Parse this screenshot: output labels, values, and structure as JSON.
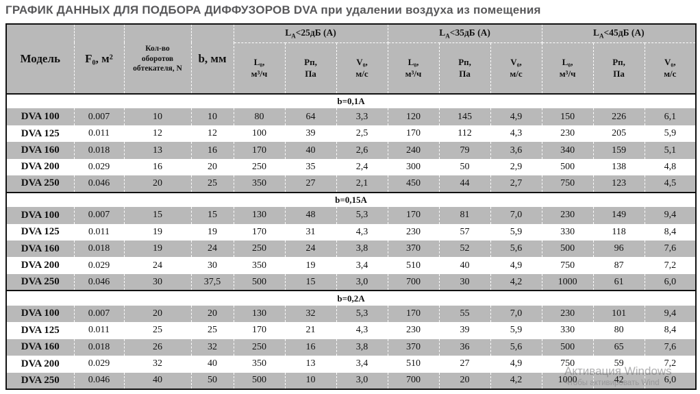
{
  "title": "ГРАФИК ДАННЫХ ДЛЯ ПОДБОРА ДИФФУЗОРОВ DVA при удалении воздуха из помещения",
  "table": {
    "columns": {
      "model": "Модель",
      "f0": "F₀, м²",
      "n": "Кол-во\nоборотов\nобтекателя, N",
      "b": "b, мм"
    },
    "groups": [
      {
        "main": "L",
        "sub": "A",
        "rest": "<25дБ (A)"
      },
      {
        "main": "L",
        "sub": "A",
        "rest": "<35дБ (A)"
      },
      {
        "main": "L",
        "sub": "A",
        "rest": "<45дБ (A)"
      }
    ],
    "subcols": [
      "L₀,\nм³/ч",
      "Рп,\nПа",
      "V₀,\nм/с"
    ],
    "sections": [
      {
        "label": "b=0,1A",
        "rows": [
          {
            "model": "DVA 100",
            "values": [
              "0.007",
              "10",
              "10",
              "80",
              "64",
              "3,3",
              "120",
              "145",
              "4,9",
              "150",
              "226",
              "6,1"
            ]
          },
          {
            "model": "DVA 125",
            "values": [
              "0.011",
              "12",
              "12",
              "100",
              "39",
              "2,5",
              "170",
              "112",
              "4,3",
              "230",
              "205",
              "5,9"
            ]
          },
          {
            "model": "DVA 160",
            "values": [
              "0.018",
              "13",
              "16",
              "170",
              "40",
              "2,6",
              "240",
              "79",
              "3,6",
              "340",
              "159",
              "5,1"
            ]
          },
          {
            "model": "DVA 200",
            "values": [
              "0.029",
              "16",
              "20",
              "250",
              "35",
              "2,4",
              "300",
              "50",
              "2,9",
              "500",
              "138",
              "4,8"
            ]
          },
          {
            "model": "DVA 250",
            "values": [
              "0.046",
              "20",
              "25",
              "350",
              "27",
              "2,1",
              "450",
              "44",
              "2,7",
              "750",
              "123",
              "4,5"
            ]
          }
        ]
      },
      {
        "label": "b=0,15A",
        "rows": [
          {
            "model": "DVA 100",
            "values": [
              "0.007",
              "15",
              "15",
              "130",
              "48",
              "5,3",
              "170",
              "81",
              "7,0",
              "230",
              "149",
              "9,4"
            ]
          },
          {
            "model": "DVA 125",
            "values": [
              "0.011",
              "19",
              "19",
              "170",
              "31",
              "4,3",
              "230",
              "57",
              "5,9",
              "330",
              "118",
              "8,4"
            ]
          },
          {
            "model": "DVA 160",
            "values": [
              "0.018",
              "19",
              "24",
              "250",
              "24",
              "3,8",
              "370",
              "52",
              "5,6",
              "500",
              "96",
              "7,6"
            ]
          },
          {
            "model": "DVA 200",
            "values": [
              "0.029",
              "24",
              "30",
              "350",
              "19",
              "3,4",
              "510",
              "40",
              "4,9",
              "750",
              "87",
              "7,2"
            ]
          },
          {
            "model": "DVA 250",
            "values": [
              "0.046",
              "30",
              "37,5",
              "500",
              "15",
              "3,0",
              "700",
              "30",
              "4,2",
              "1000",
              "61",
              "6,0"
            ]
          }
        ]
      },
      {
        "label": "b=0,2A",
        "rows": [
          {
            "model": "DVA 100",
            "values": [
              "0.007",
              "20",
              "20",
              "130",
              "32",
              "5,3",
              "170",
              "55",
              "7,0",
              "230",
              "101",
              "9,4"
            ]
          },
          {
            "model": "DVA 125",
            "values": [
              "0.011",
              "25",
              "25",
              "170",
              "21",
              "4,3",
              "230",
              "39",
              "5,9",
              "330",
              "80",
              "8,4"
            ]
          },
          {
            "model": "DVA 160",
            "values": [
              "0.018",
              "26",
              "32",
              "250",
              "16",
              "3,8",
              "370",
              "36",
              "5,6",
              "500",
              "65",
              "7,6"
            ]
          },
          {
            "model": "DVA 200",
            "values": [
              "0.029",
              "32",
              "40",
              "350",
              "13",
              "3,4",
              "510",
              "27",
              "4,9",
              "750",
              "59",
              "7,2"
            ]
          },
          {
            "model": "DVA 250",
            "values": [
              "0.046",
              "40",
              "50",
              "500",
              "10",
              "3,0",
              "700",
              "20",
              "4,2",
              "1000",
              "42",
              "6,0"
            ]
          }
        ]
      }
    ]
  },
  "colors": {
    "row_shade": "#b9b9b9",
    "border": "#111111",
    "title_text": "#58585a"
  },
  "watermark": {
    "line1": "Активация Windows",
    "line2": "Чтобы активировать Wind"
  }
}
